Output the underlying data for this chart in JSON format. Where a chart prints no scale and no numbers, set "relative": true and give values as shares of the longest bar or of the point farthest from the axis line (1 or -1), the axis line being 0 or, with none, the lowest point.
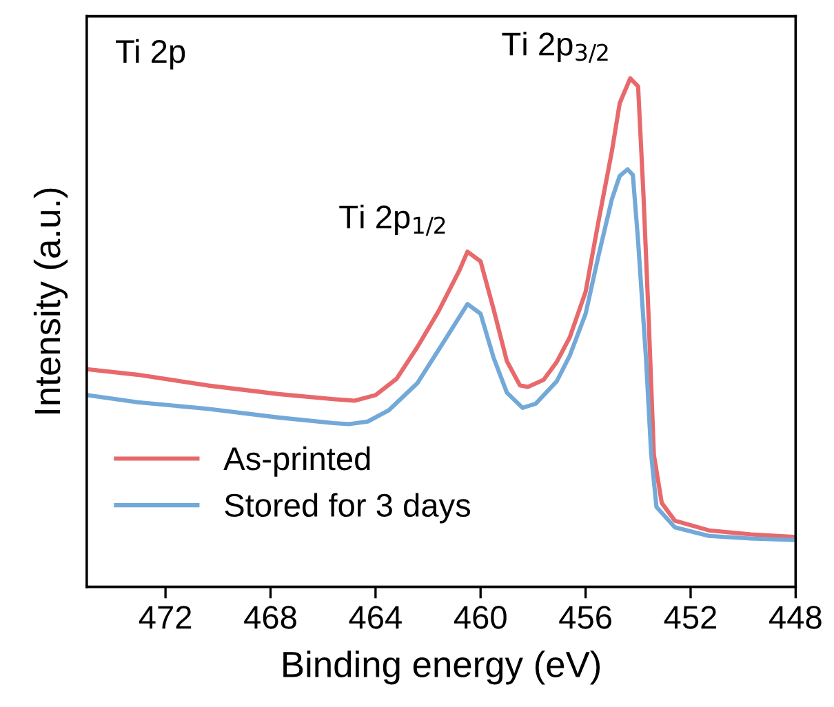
{
  "chart_data": {
    "type": "line",
    "relative": true,
    "xlabel": "Binding energy (eV)",
    "ylabel": "Intensity (a.u.)",
    "xlim": [
      475,
      448
    ],
    "xticks": [
      472,
      468,
      464,
      460,
      456,
      452,
      448
    ],
    "tick_labels": "x",
    "grid": false,
    "legend": "bottom left",
    "line_style": "solid",
    "marker": "none",
    "annotations": [
      "Ti 2p",
      {
        "text": "Ti 2p$_{1/2}$",
        "x": 460.5,
        "y": 0.66
      },
      {
        "text": "Ti 2p$_{3/2}$",
        "x": 454.3,
        "y": 1.0
      }
    ],
    "series": [
      {
        "name": "As-printed",
        "color": "#e8696b",
        "x": [
          475,
          473.06,
          470.4,
          467.7,
          465.6,
          464.8,
          464.0,
          463.2,
          462.4,
          461.6,
          460.8,
          460.5,
          460.0,
          459.5,
          459.0,
          458.5,
          458.2,
          457.6,
          457.1,
          456.6,
          456.0,
          455.5,
          455.0,
          454.7,
          454.3,
          454.0,
          453.8,
          453.6,
          453.4,
          453.1,
          452.6,
          451.3,
          449.7,
          448
        ],
        "values": [
          0.428,
          0.417,
          0.396,
          0.379,
          0.369,
          0.366,
          0.377,
          0.409,
          0.472,
          0.542,
          0.623,
          0.659,
          0.64,
          0.545,
          0.444,
          0.396,
          0.393,
          0.407,
          0.442,
          0.491,
          0.58,
          0.721,
          0.856,
          0.951,
          1.0,
          0.984,
          0.775,
          0.531,
          0.26,
          0.165,
          0.13,
          0.111,
          0.103,
          0.098
        ]
      },
      {
        "name": "Stored for 3 days",
        "color": "#73a9d8",
        "x": [
          475,
          473.06,
          470.4,
          467.7,
          465.6,
          465.0,
          464.3,
          463.5,
          462.4,
          461.4,
          460.5,
          460.0,
          459.5,
          459.0,
          458.4,
          457.9,
          457.1,
          456.6,
          456.0,
          455.5,
          455.0,
          454.7,
          454.4,
          454.2,
          454.0,
          453.7,
          453.5,
          453.3,
          452.6,
          451.3,
          449.7,
          448
        ],
        "values": [
          0.377,
          0.363,
          0.35,
          0.333,
          0.322,
          0.32,
          0.325,
          0.347,
          0.401,
          0.482,
          0.556,
          0.537,
          0.45,
          0.382,
          0.352,
          0.36,
          0.404,
          0.455,
          0.537,
          0.653,
          0.762,
          0.808,
          0.821,
          0.81,
          0.68,
          0.45,
          0.26,
          0.157,
          0.117,
          0.1,
          0.095,
          0.092
        ]
      }
    ]
  }
}
